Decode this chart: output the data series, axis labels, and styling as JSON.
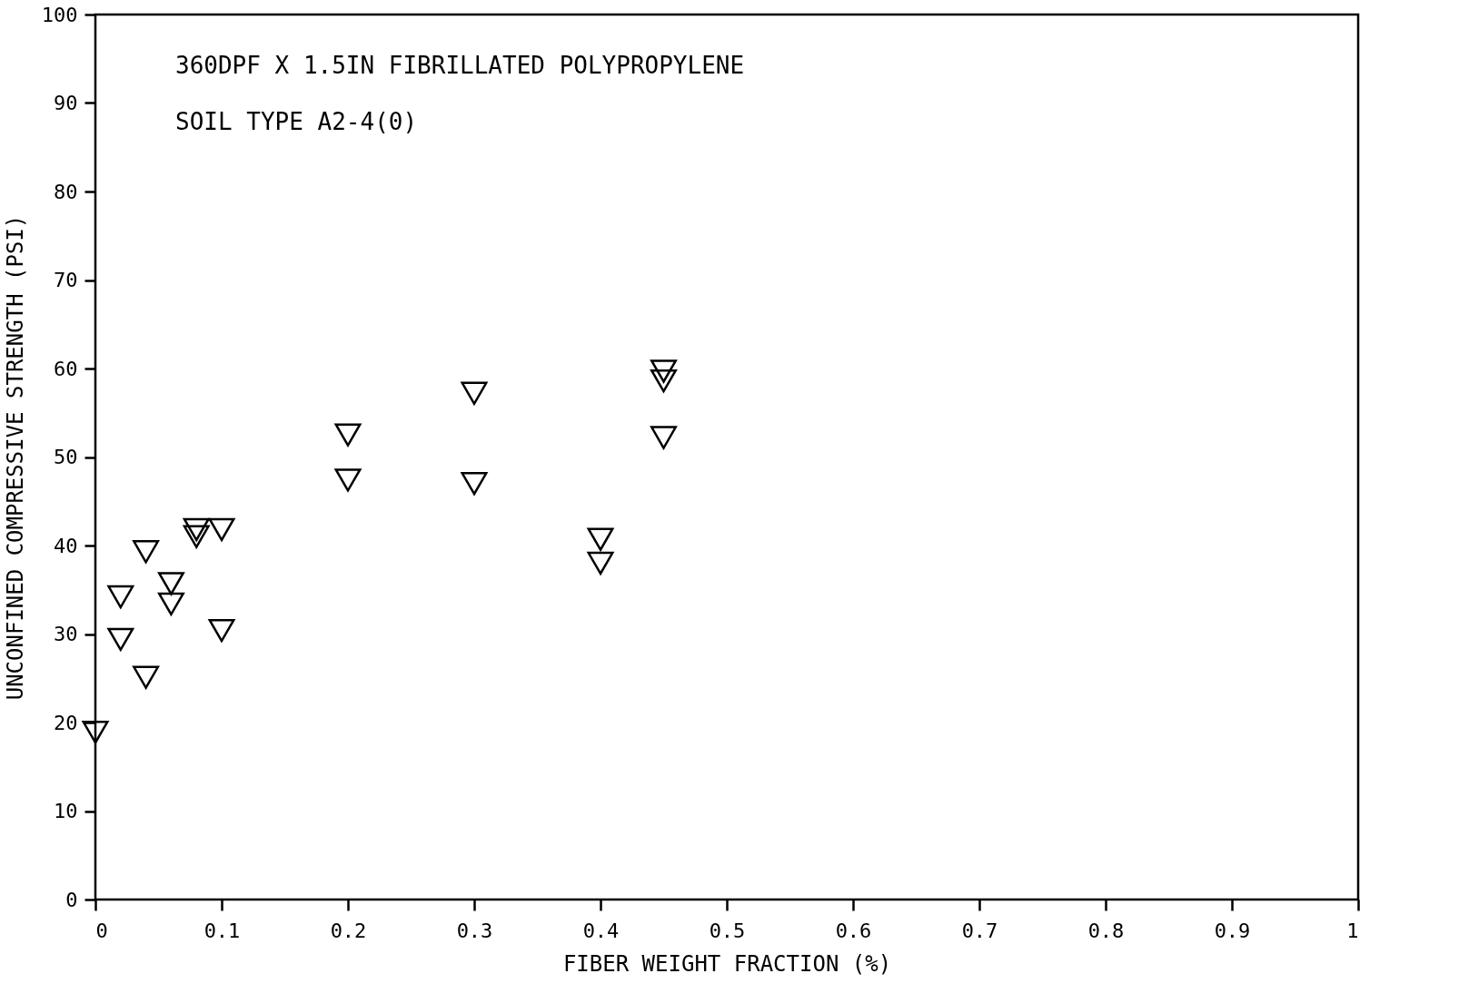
{
  "chart_data": {
    "type": "scatter",
    "xlabel": "FIBER WEIGHT FRACTION (%)",
    "ylabel": "UNCONFINED COMPRESSIVE STRENGTH (PSI)",
    "annotations": [
      "360DPF X 1.5IN FIBRILLATED POLYPROPYLENE",
      "SOIL TYPE A2-4(0)"
    ],
    "series": [
      {
        "color": "#000000",
        "x": [
          0,
          0.02,
          0.02,
          0.04,
          0.04,
          0.06,
          0.06,
          0.08,
          0.08,
          0.1,
          0.1,
          0.2,
          0.2,
          0.3,
          0.3,
          0.4,
          0.4,
          0.45,
          0.45,
          0.45
        ],
        "values": [
          18.9,
          34.2,
          29.4,
          39.3,
          25.1,
          35.7,
          33.4,
          41.8,
          41.0,
          41.8,
          30.4,
          52.5,
          47.4,
          57.2,
          47.0,
          40.7,
          38.0,
          59.7,
          58.6,
          52.2
        ]
      }
    ],
    "xlim": [
      0,
      1
    ],
    "xticks": [
      0,
      0.1,
      0.2,
      0.3,
      0.4,
      0.5,
      0.6,
      0.7,
      0.8,
      0.9,
      1
    ],
    "ylim": [
      0,
      100
    ],
    "yticks": [
      0,
      10,
      20,
      30,
      40,
      50,
      60,
      70,
      80,
      90,
      100
    ],
    "marker": "triangle",
    "grid": false
  }
}
